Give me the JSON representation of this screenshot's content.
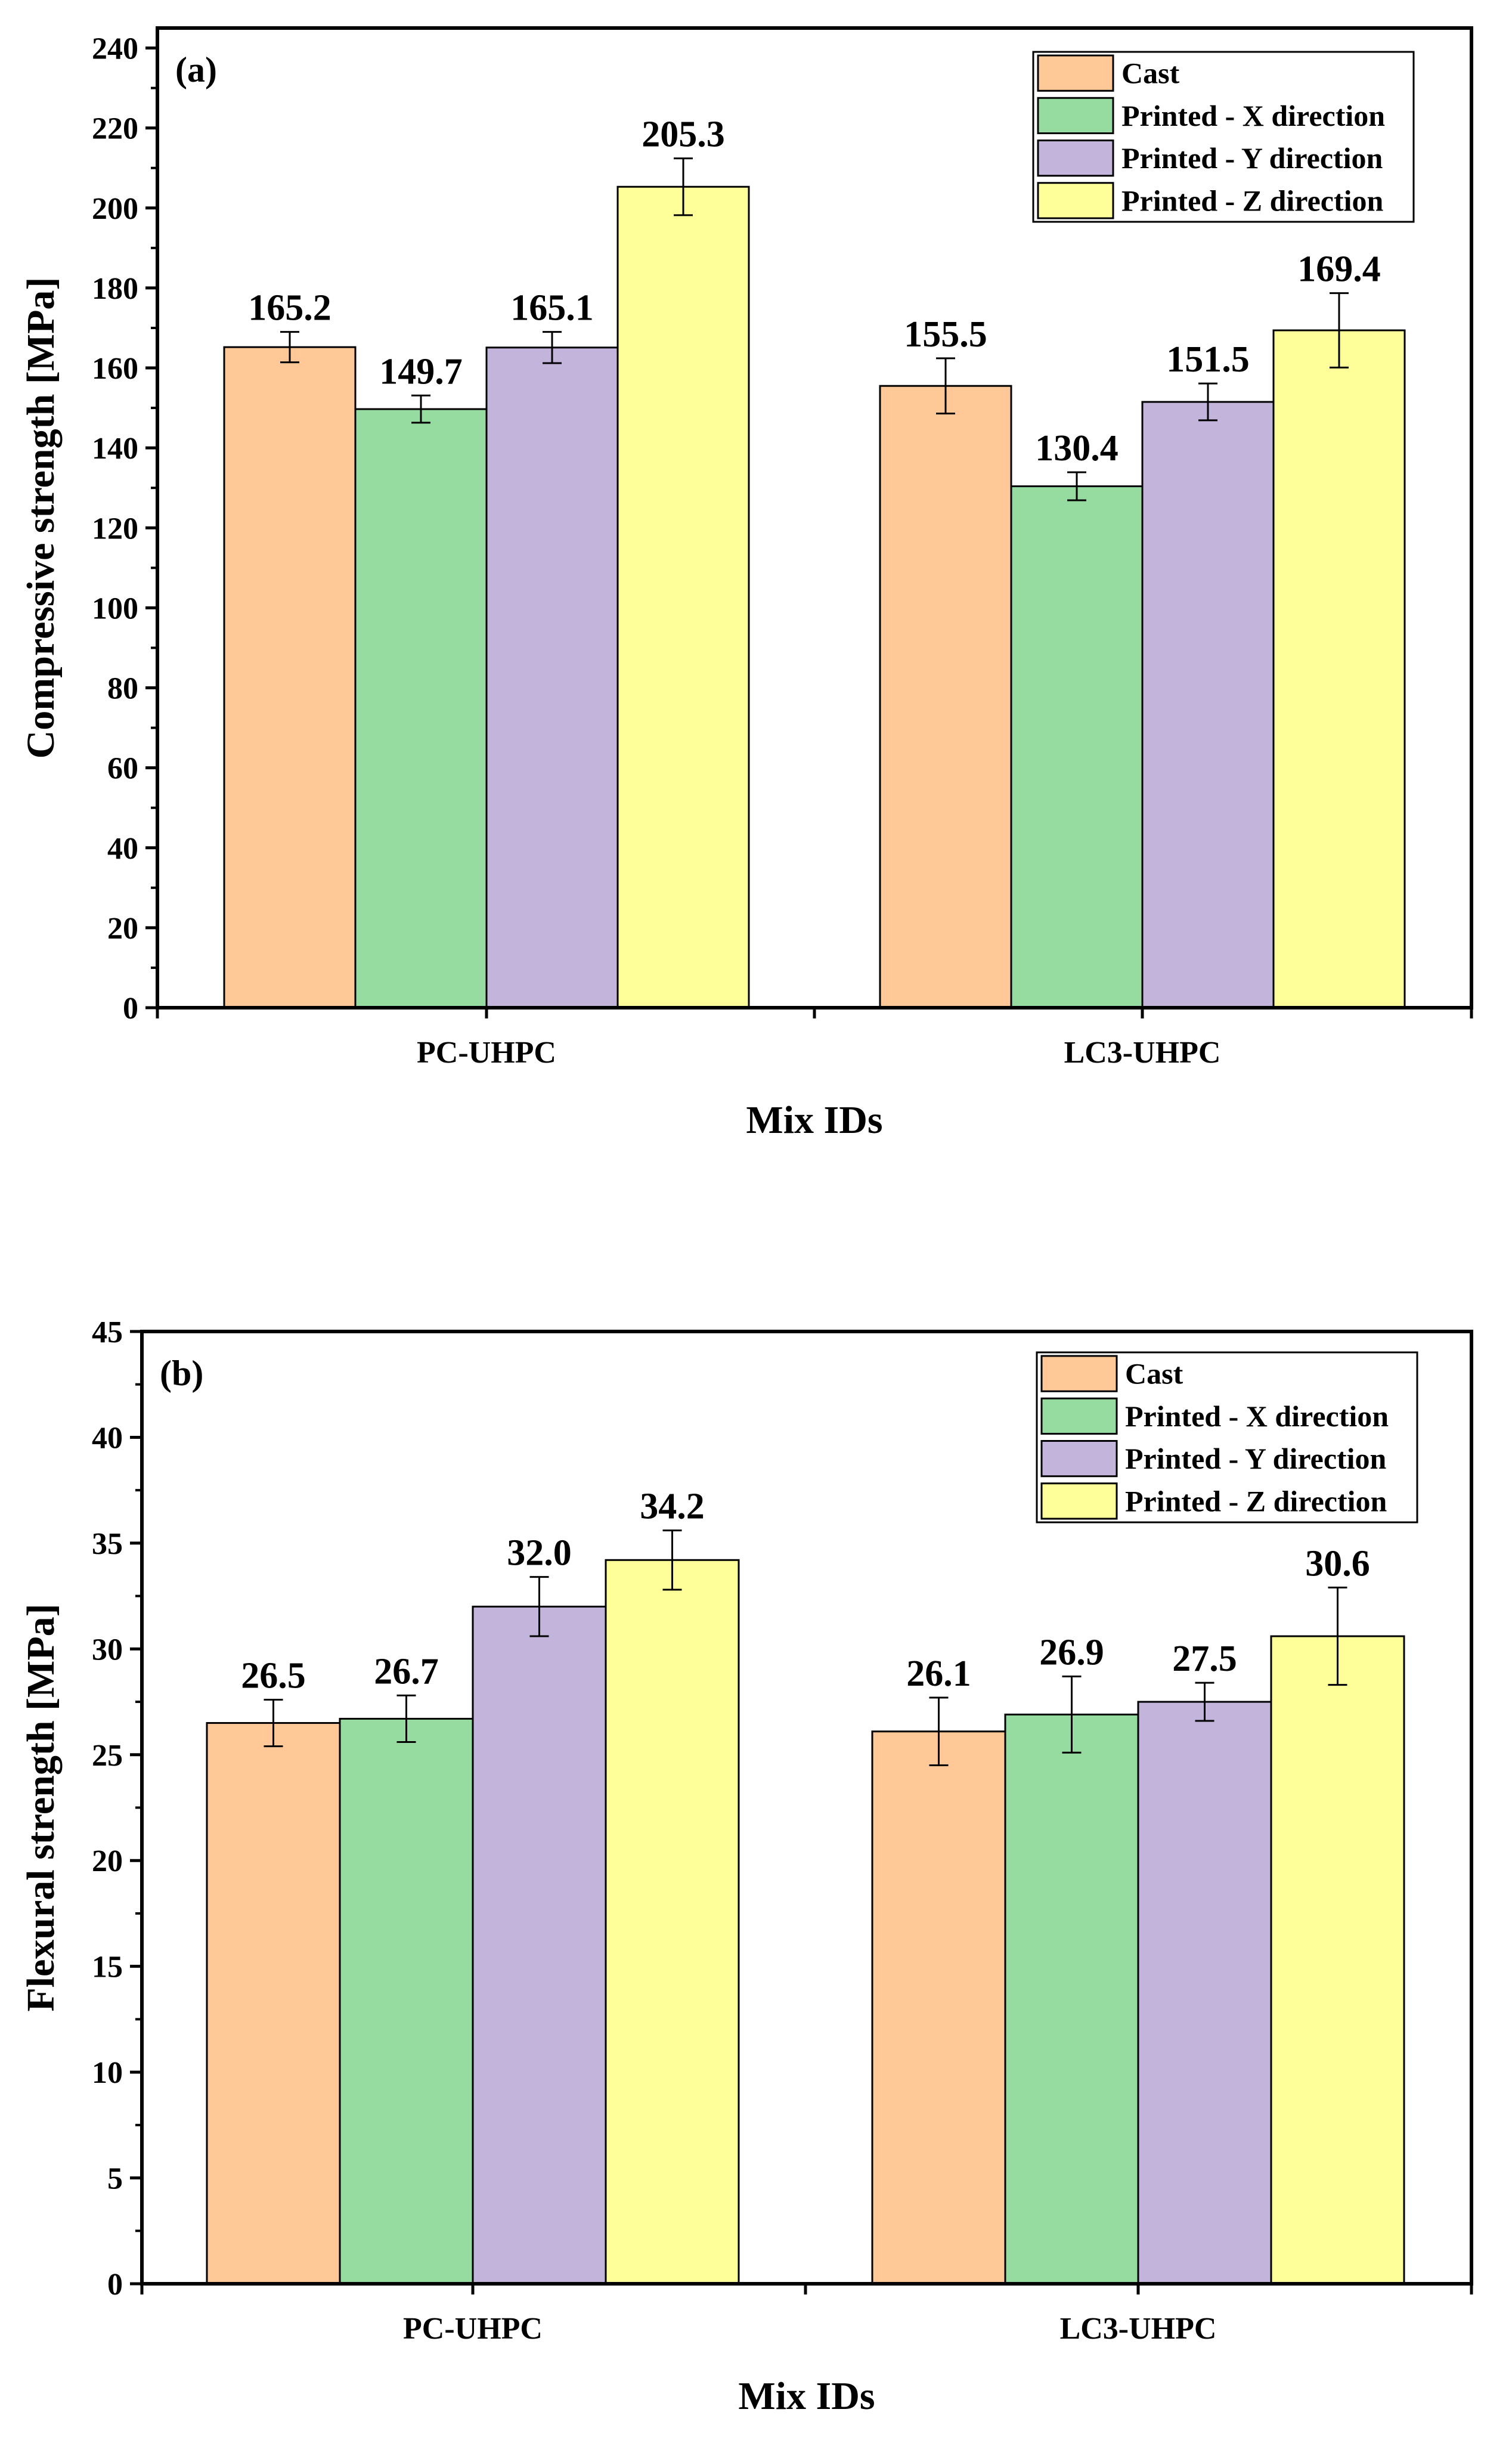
{
  "chart_data": [
    {
      "type": "bar",
      "panel_label": "(a)",
      "categories": [
        "PC-UHPC",
        "LC3-UHPC"
      ],
      "series": [
        {
          "name": "Cast",
          "color": "#ffc896",
          "values": [
            165.2,
            155.5
          ],
          "errors": [
            3.8,
            6.9
          ],
          "labels": [
            "165.2",
            "155.5"
          ]
        },
        {
          "name": "Printed - X direction",
          "color": "#96dca0",
          "values": [
            149.7,
            130.4
          ],
          "errors": [
            3.4,
            3.5
          ],
          "labels": [
            "149.7",
            "130.4"
          ]
        },
        {
          "name": "Printed - Y direction",
          "color": "#c3b4dc",
          "values": [
            165.1,
            151.5
          ],
          "errors": [
            3.9,
            4.6
          ],
          "labels": [
            "165.1",
            "151.5"
          ]
        },
        {
          "name": "Printed - Z direction",
          "color": "#ffff9a",
          "values": [
            205.3,
            169.4
          ],
          "errors": [
            7.1,
            9.3
          ],
          "labels": [
            "205.3",
            "169.4"
          ]
        }
      ],
      "xlabel": "Mix IDs",
      "ylabel": "Compressive strength [MPa]",
      "ylim": [
        0,
        245
      ],
      "yticks": [
        "0",
        "20",
        "40",
        "60",
        "80",
        "100",
        "120",
        "140",
        "160",
        "180",
        "200",
        "220",
        "240"
      ],
      "legend_position": "top-right",
      "grid": false
    },
    {
      "type": "bar",
      "panel_label": "(b)",
      "categories": [
        "PC-UHPC",
        "LC3-UHPC"
      ],
      "series": [
        {
          "name": "Cast",
          "color": "#ffc896",
          "values": [
            26.5,
            26.1
          ],
          "errors": [
            1.1,
            1.6
          ],
          "labels": [
            "26.5",
            "26.1"
          ]
        },
        {
          "name": "Printed - X direction",
          "color": "#96dca0",
          "values": [
            26.7,
            26.9
          ],
          "errors": [
            1.1,
            1.8
          ],
          "labels": [
            "26.7",
            "26.9"
          ]
        },
        {
          "name": "Printed - Y direction",
          "color": "#c3b4dc",
          "values": [
            32.0,
            27.5
          ],
          "errors": [
            1.4,
            0.9
          ],
          "labels": [
            "32.0",
            "27.5"
          ]
        },
        {
          "name": "Printed - Z direction",
          "color": "#ffff9a",
          "values": [
            34.2,
            30.6
          ],
          "errors": [
            1.4,
            2.3
          ],
          "labels": [
            "34.2",
            "30.6"
          ]
        }
      ],
      "xlabel": "Mix IDs",
      "ylabel": "Flexural strength [MPa]",
      "ylim": [
        0,
        45
      ],
      "yticks": [
        "0",
        "5",
        "10",
        "15",
        "20",
        "25",
        "30",
        "35",
        "40",
        "45"
      ],
      "legend_position": "top-right",
      "grid": false
    }
  ]
}
